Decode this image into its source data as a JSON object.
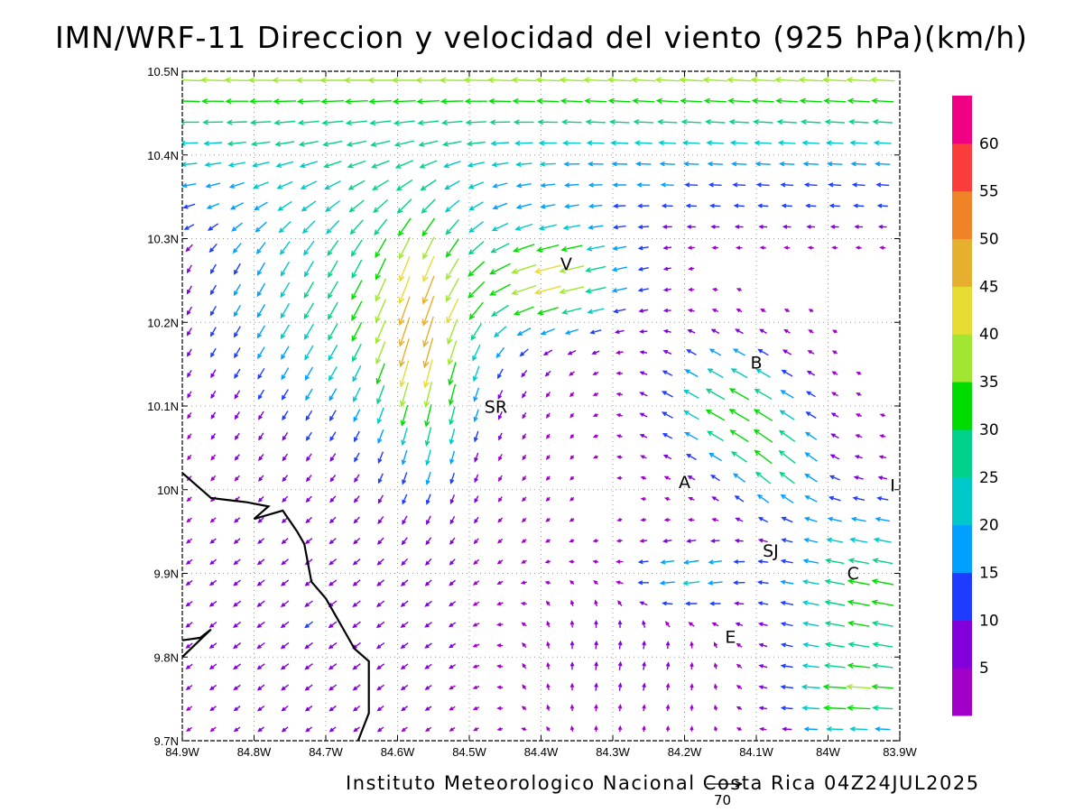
{
  "title": "IMN/WRF-11 Direccion y velocidad del viento (925 hPa)(km/h)",
  "credit": "Instituto Meteorologico Nacional Costa Rica 04Z24JUL2025",
  "reference_vector_label": "70",
  "map": {
    "lon_range": [
      -84.9,
      -83.9
    ],
    "lat_range": [
      9.7,
      10.5
    ],
    "x_ticks": [
      "84.9W",
      "84.8W",
      "84.7W",
      "84.6W",
      "84.5W",
      "84.4W",
      "84.3W",
      "84.2W",
      "84.1W",
      "84W",
      "83.9W"
    ],
    "y_ticks": [
      "9.7N",
      "9.8N",
      "9.9N",
      "10N",
      "10.1N",
      "10.2N",
      "10.3N",
      "10.4N",
      "10.5N"
    ],
    "grid": "dotted",
    "coastline": [
      [
        -84.9,
        10.02
      ],
      [
        -84.86,
        9.99
      ],
      [
        -84.81,
        9.985
      ],
      [
        -84.78,
        9.98
      ],
      [
        -84.8,
        9.965
      ],
      [
        -84.76,
        9.975
      ],
      [
        -84.74,
        9.95
      ],
      [
        -84.73,
        9.935
      ],
      [
        -84.72,
        9.89
      ],
      [
        -84.7,
        9.87
      ],
      [
        -84.68,
        9.84
      ],
      [
        -84.66,
        9.81
      ],
      [
        -84.64,
        9.795
      ],
      [
        -84.64,
        9.733
      ],
      [
        -84.655,
        9.7
      ]
    ],
    "coastline2": [
      [
        -84.9,
        9.82
      ],
      [
        -84.875,
        9.823
      ],
      [
        -84.86,
        9.833
      ],
      [
        -84.9,
        9.8
      ]
    ],
    "place_labels": [
      {
        "text": "V",
        "lon": -84.365,
        "lat": 10.263
      },
      {
        "text": "SR",
        "lon": -84.463,
        "lat": 10.092
      },
      {
        "text": "B",
        "lon": -84.1,
        "lat": 10.145
      },
      {
        "text": "A",
        "lon": -84.2,
        "lat": 10.002
      },
      {
        "text": "SJ",
        "lon": -84.08,
        "lat": 9.92
      },
      {
        "text": "C",
        "lon": -83.965,
        "lat": 9.893
      },
      {
        "text": "E",
        "lon": -84.136,
        "lat": 9.817
      },
      {
        "text": "I",
        "lon": -83.91,
        "lat": 9.998
      }
    ]
  },
  "colorbar": {
    "colors": [
      "#a000c8",
      "#8200dc",
      "#1e3cff",
      "#00a0ff",
      "#00c8c8",
      "#00d28c",
      "#00dc00",
      "#a0e632",
      "#e6dc32",
      "#e6af2d",
      "#f08228",
      "#fa3c3c",
      "#f00082"
    ],
    "labels": [
      "5",
      "10",
      "15",
      "20",
      "25",
      "30",
      "35",
      "40",
      "45",
      "50",
      "55",
      "60"
    ]
  }
}
